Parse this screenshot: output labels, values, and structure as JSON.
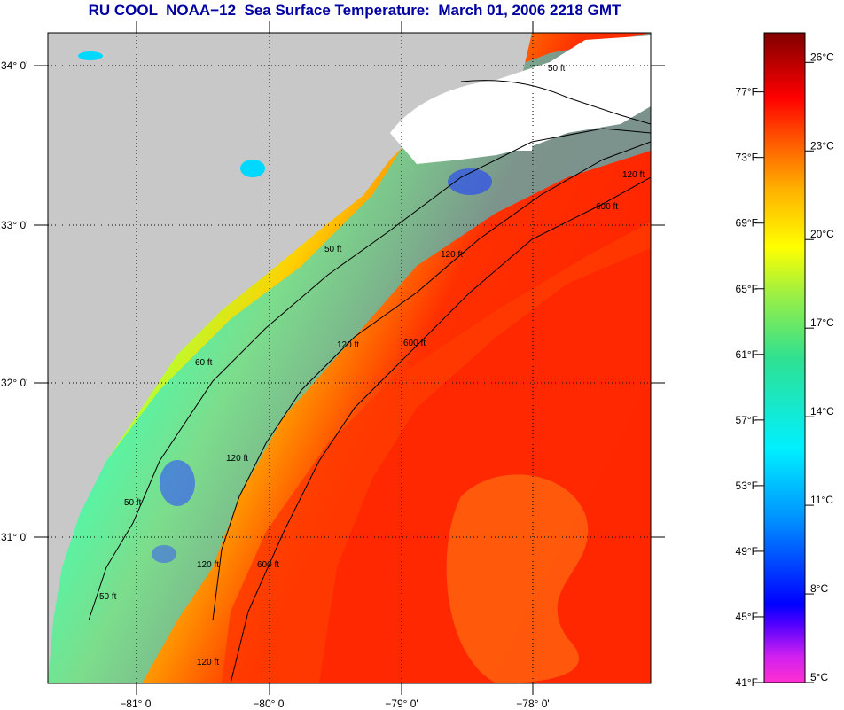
{
  "title": "RU COOL  NOAA−12  Sea Surface Temperature:  March 01, 2006 2218 GMT",
  "map": {
    "lat_labels": [
      "34° 0'",
      "33° 0'",
      "32° 0'",
      "31° 0'"
    ],
    "lon_labels": [
      "−81° 0'",
      "−80° 0'",
      "−79° 0'",
      "−78° 0'"
    ],
    "contour_labels": [
      "50 ft",
      "120 ft",
      "600 ft",
      "120 ft",
      "600 ft",
      "50 ft",
      "60 ft",
      "120 ft",
      "120 ft",
      "50 ft",
      "600 ft",
      "120 ft",
      "50 ft",
      "120 ft"
    ],
    "colors": {
      "land": "#c8c8c8",
      "cloud": "#ffffff",
      "cold": "#00e0ff",
      "cool": "#40ffb0",
      "mild": "#ffe000",
      "warm": "#ff9800",
      "hot": "#ff2a00"
    }
  },
  "colorbar": {
    "fahrenheit_labels": [
      "77°F",
      "73°F",
      "69°F",
      "65°F",
      "61°F",
      "57°F",
      "53°F",
      "49°F",
      "45°F",
      "41°F"
    ],
    "celsius_labels": [
      "26°C",
      "23°C",
      "20°C",
      "17°C",
      "14°C",
      "11°C",
      "8°C",
      "5°C"
    ],
    "range_c": [
      5,
      27
    ],
    "range_f": [
      41,
      80.6
    ]
  }
}
